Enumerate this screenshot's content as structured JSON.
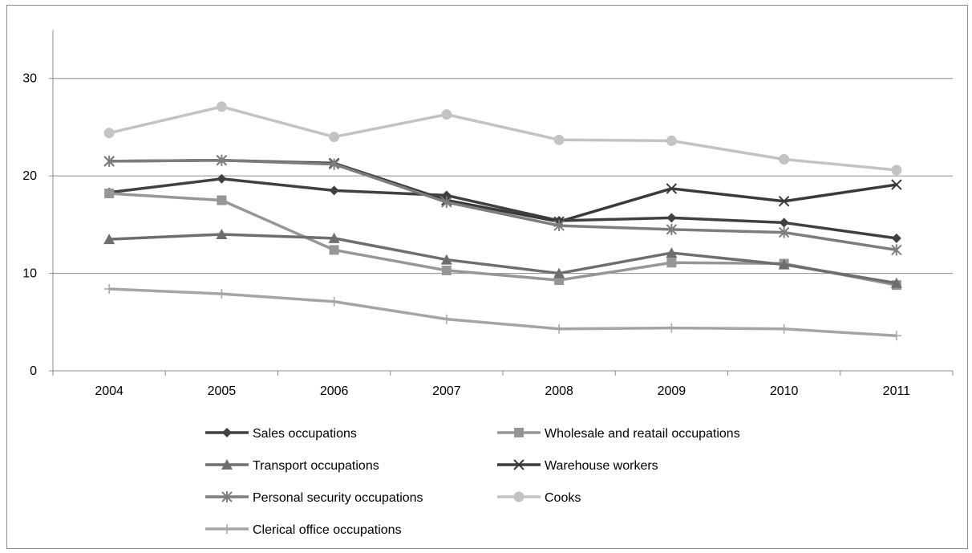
{
  "chart_data": {
    "type": "line",
    "title": "",
    "xlabel": "",
    "ylabel": "",
    "categories": [
      "2004",
      "2005",
      "2006",
      "2007",
      "2008",
      "2009",
      "2010",
      "2011"
    ],
    "ylim": [
      0,
      35
    ],
    "yticks": [
      0,
      10,
      20,
      30
    ],
    "grid": true,
    "legend_position": "bottom",
    "series": [
      {
        "name": "Sales occupations",
        "values": [
          18.3,
          19.7,
          18.5,
          18.0,
          15.4,
          15.7,
          15.2,
          13.6
        ],
        "marker": "diamond",
        "color": "#404040",
        "legend_col": 0,
        "legend_row": 0
      },
      {
        "name": "Wholesale and reatail occupations",
        "values": [
          18.2,
          17.5,
          12.4,
          10.3,
          9.3,
          11.1,
          11.0,
          8.8
        ],
        "marker": "square",
        "color": "#969696",
        "legend_col": 1,
        "legend_row": 0
      },
      {
        "name": "Transport occupations",
        "values": [
          13.5,
          14.0,
          13.6,
          11.4,
          10.0,
          12.1,
          10.9,
          9.0
        ],
        "marker": "triangle",
        "color": "#6e6e6e",
        "legend_col": 0,
        "legend_row": 1
      },
      {
        "name": "Warehouse workers",
        "values": [
          21.5,
          21.6,
          21.3,
          17.5,
          15.3,
          18.7,
          17.4,
          19.1
        ],
        "marker": "x",
        "color": "#3a3a3a",
        "legend_col": 1,
        "legend_row": 1
      },
      {
        "name": "Personal security occupations",
        "values": [
          21.5,
          21.6,
          21.2,
          17.3,
          14.9,
          14.5,
          14.2,
          12.4
        ],
        "marker": "star",
        "color": "#7d7d7d",
        "legend_col": 0,
        "legend_row": 2
      },
      {
        "name": "Cooks",
        "values": [
          24.4,
          27.1,
          24.0,
          26.3,
          23.7,
          23.6,
          21.7,
          20.6
        ],
        "marker": "circle",
        "color": "#c3c3c3",
        "legend_col": 1,
        "legend_row": 2
      },
      {
        "name": "Clerical office occupations",
        "values": [
          8.4,
          7.9,
          7.1,
          5.3,
          4.3,
          4.4,
          4.3,
          3.6
        ],
        "marker": "plus",
        "color": "#a5a5a5",
        "legend_col": 0,
        "legend_row": 3
      }
    ]
  }
}
